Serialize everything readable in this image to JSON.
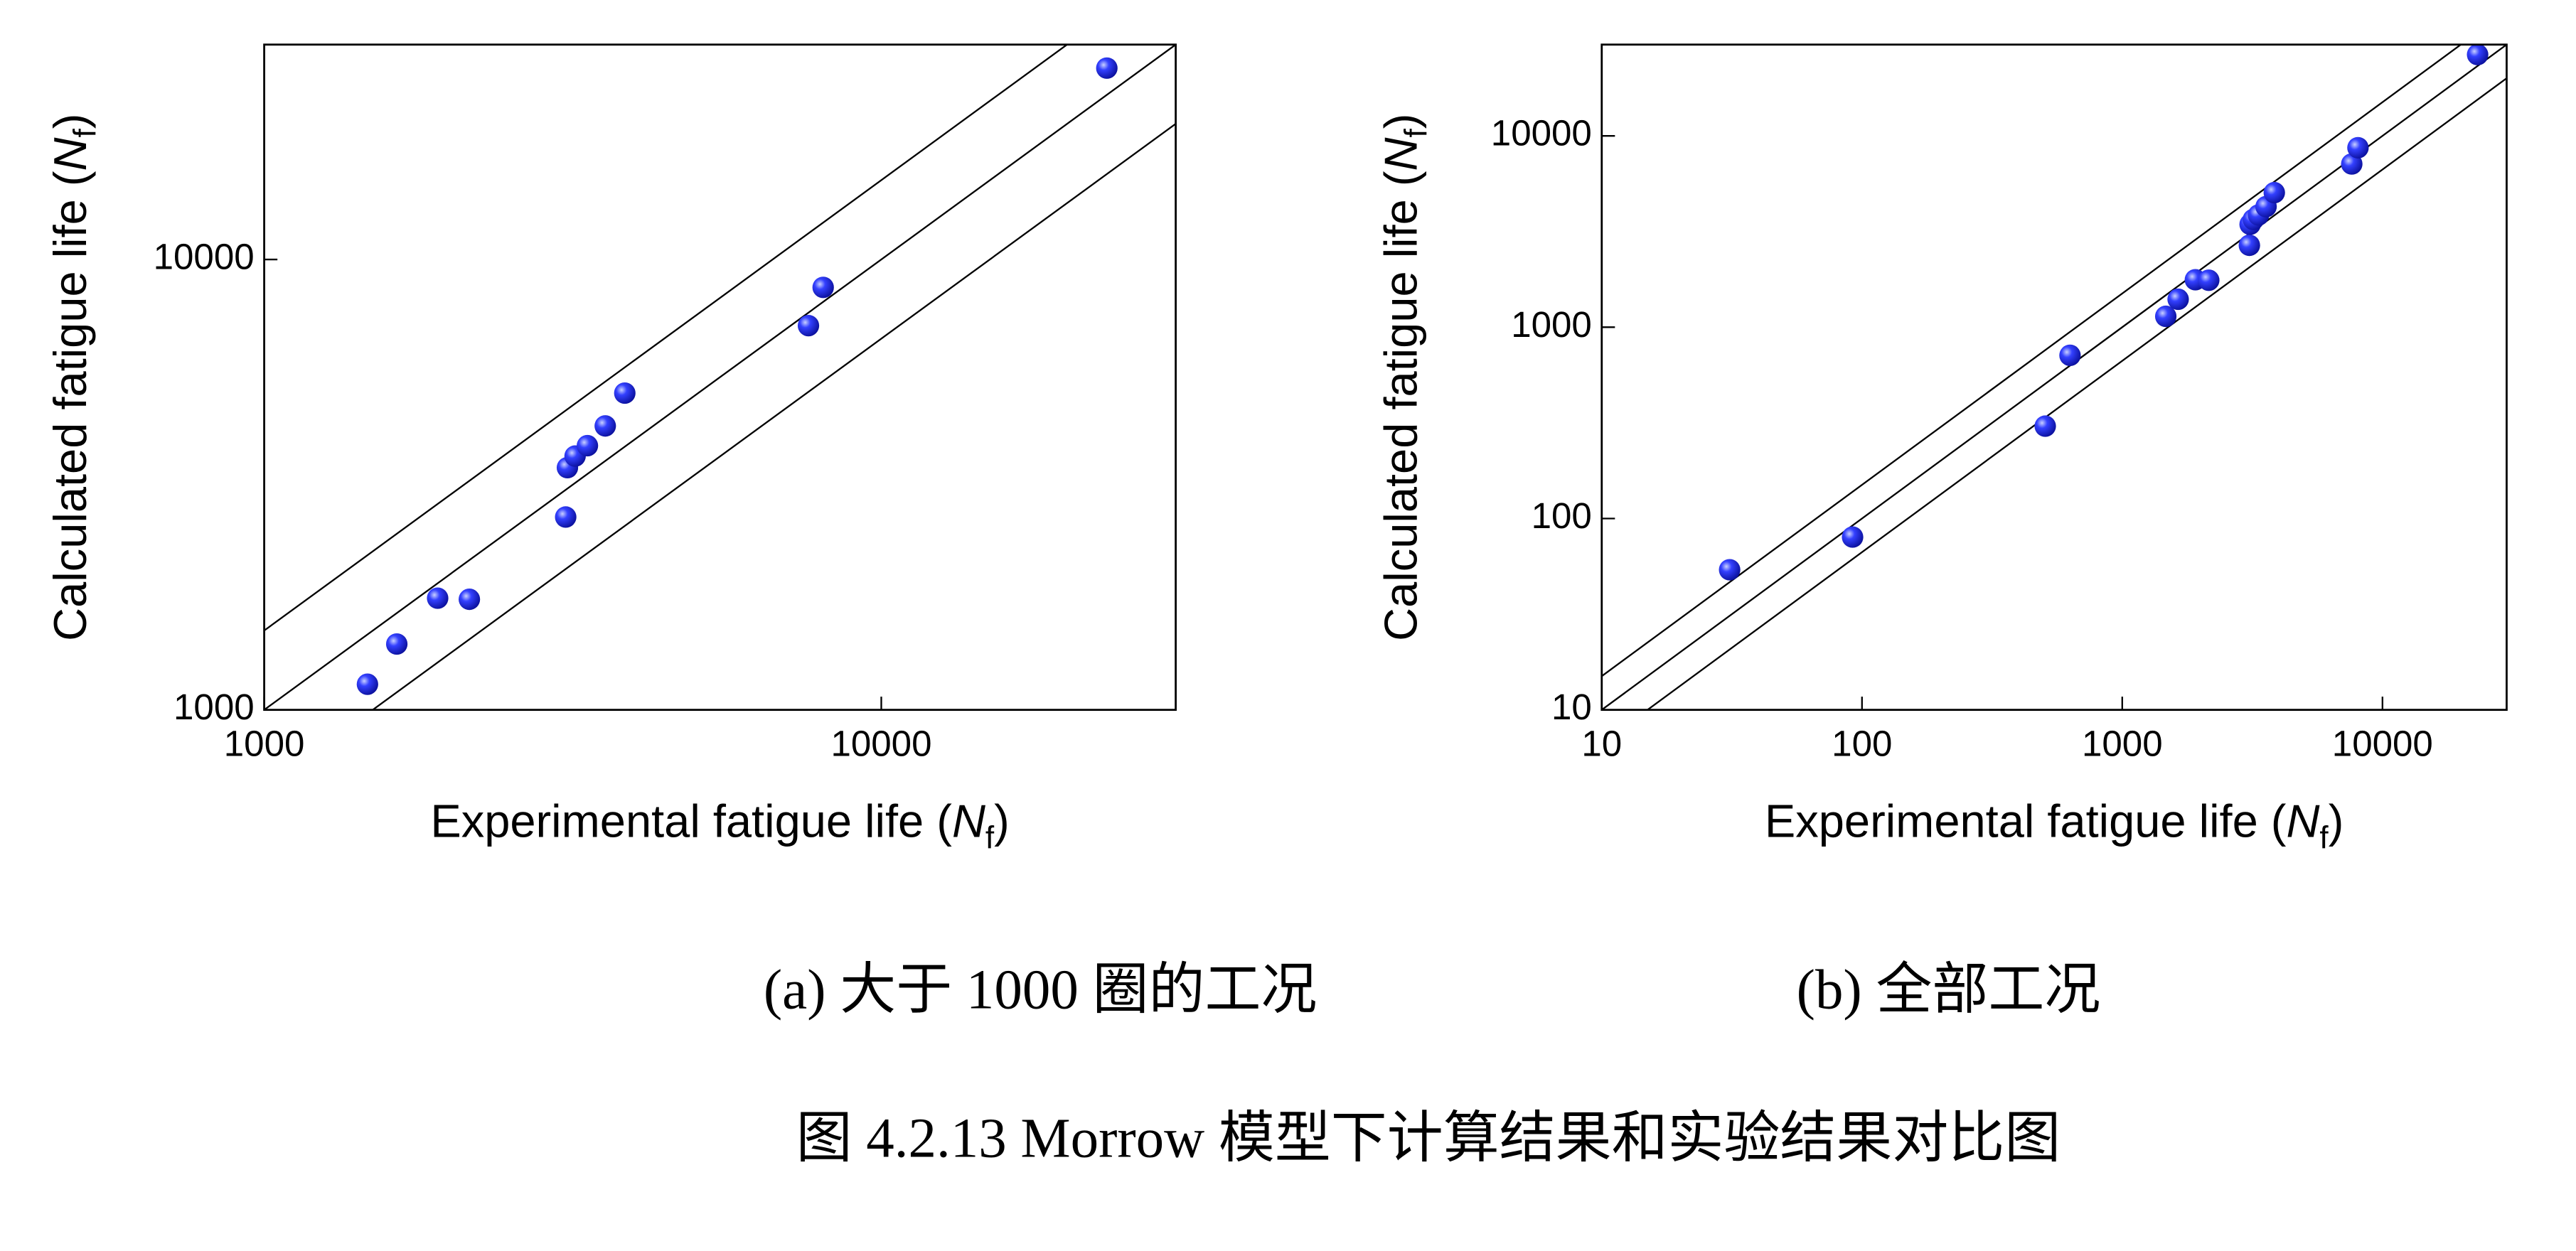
{
  "chart_data": [
    {
      "type": "scatter",
      "caption": "(a)  大于 1000 圈的工况",
      "xlabel": [
        "Experimental fatigue life (",
        "N",
        "f",
        ")"
      ],
      "ylabel": [
        "Calculated fatigue life (",
        "N",
        "f",
        ")"
      ],
      "log_x": true,
      "log_y": true,
      "color": "#1f2bff",
      "xlim": [
        1000,
        30000
      ],
      "ylim": [
        1000,
        30000
      ],
      "xticks": [
        1000,
        10000
      ],
      "yticks": [
        1000,
        10000
      ],
      "reference_lines": [
        1.5,
        1,
        0.667
      ],
      "x": [
        1470,
        1640,
        1910,
        2150,
        3080,
        3100,
        3190,
        3340,
        3570,
        3840,
        7620,
        8050,
        23200
      ],
      "values": [
        1140,
        1400,
        1770,
        1760,
        2680,
        3450,
        3660,
        3860,
        4270,
        5050,
        7130,
        8670,
        26600
      ]
    },
    {
      "type": "scatter",
      "caption": "(b)  全部工况",
      "xlabel": [
        "Experimental fatigue life (",
        "N",
        "f",
        ")"
      ],
      "ylabel": [
        "Calculated fatigue life (",
        "N",
        "f",
        ")"
      ],
      "log_x": true,
      "log_y": true,
      "color": "#1f2bff",
      "xlim": [
        10,
        30000
      ],
      "ylim": [
        10,
        30000
      ],
      "xticks": [
        10,
        100,
        1000,
        10000
      ],
      "yticks": [
        10,
        100,
        1000,
        10000
      ],
      "reference_lines": [
        1.5,
        1,
        0.667
      ],
      "x": [
        31,
        92,
        506,
        630,
        1470,
        1640,
        1910,
        2150,
        3080,
        3100,
        3190,
        3340,
        3570,
        3840,
        7620,
        8050,
        23200
      ],
      "values": [
        54,
        80,
        304,
        713,
        1140,
        1400,
        1770,
        1760,
        2680,
        3450,
        3660,
        3860,
        4270,
        5050,
        7130,
        8670,
        26600
      ]
    }
  ],
  "figure_caption": "图 4.2.13 Morrow 模型下计算结果和实验结果对比图"
}
